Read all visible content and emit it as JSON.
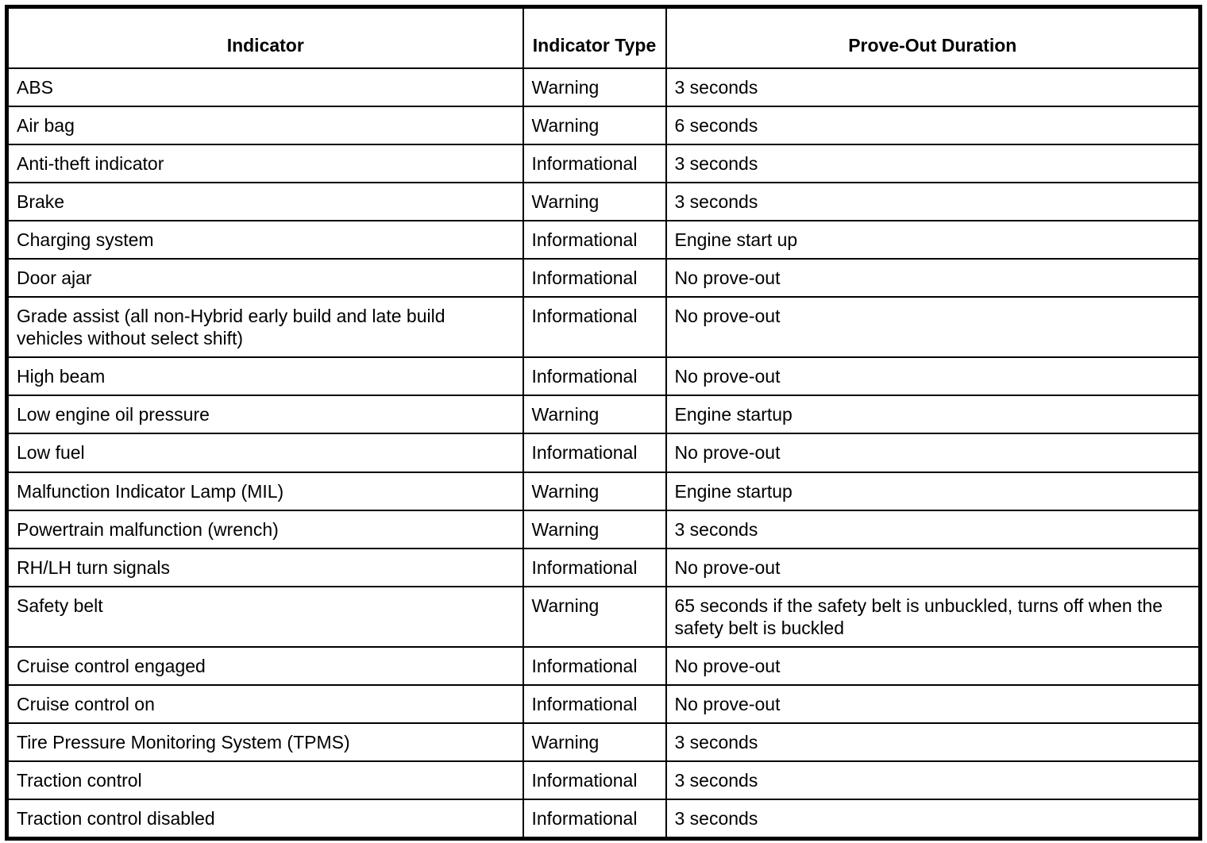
{
  "table": {
    "headers": [
      "Indicator",
      "Indicator Type",
      "Prove-Out Duration"
    ],
    "rows": [
      {
        "indicator": "ABS",
        "type": "Warning",
        "duration": "3 seconds",
        "lines": 1
      },
      {
        "indicator": "Air bag",
        "type": "Warning",
        "duration": "6 seconds",
        "lines": 1
      },
      {
        "indicator": "Anti-theft indicator",
        "type": "Informational",
        "duration": "3 seconds",
        "lines": 1
      },
      {
        "indicator": "Brake",
        "type": "Warning",
        "duration": "3 seconds",
        "lines": 1
      },
      {
        "indicator": "Charging system",
        "type": "Informational",
        "duration": "Engine start up",
        "lines": 1
      },
      {
        "indicator": "Door ajar",
        "type": "Informational",
        "duration": "No prove-out",
        "lines": 1
      },
      {
        "indicator": "Grade assist (all non-Hybrid early build and late build vehicles without select shift)",
        "type": "Informational",
        "duration": "No prove-out",
        "lines": 2
      },
      {
        "indicator": "High beam",
        "type": "Informational",
        "duration": "No prove-out",
        "lines": 1
      },
      {
        "indicator": "Low engine oil pressure",
        "type": "Warning",
        "duration": "Engine startup",
        "lines": 1
      },
      {
        "indicator": "Low fuel",
        "type": "Informational",
        "duration": "No prove-out",
        "lines": 1
      },
      {
        "indicator": "Malfunction Indicator Lamp (MIL)",
        "type": "Warning",
        "duration": "Engine startup",
        "lines": 1
      },
      {
        "indicator": "Powertrain malfunction (wrench)",
        "type": "Warning",
        "duration": "3 seconds",
        "lines": 1
      },
      {
        "indicator": "RH/LH turn signals",
        "type": "Informational",
        "duration": "No prove-out",
        "lines": 1
      },
      {
        "indicator": "Safety belt",
        "type": "Warning",
        "duration": "65 seconds if the safety belt is unbuckled, turns off when the safety belt is buckled",
        "lines": 2
      },
      {
        "indicator": "Cruise control engaged",
        "type": "Informational",
        "duration": "No prove-out",
        "lines": 1
      },
      {
        "indicator": "Cruise control on",
        "type": "Informational",
        "duration": "No prove-out",
        "lines": 1
      },
      {
        "indicator": "Tire Pressure Monitoring System (TPMS)",
        "type": "Warning",
        "duration": "3 seconds",
        "lines": 1
      },
      {
        "indicator": "Traction control",
        "type": "Informational",
        "duration": "3 seconds",
        "lines": 1
      },
      {
        "indicator": "Traction control disabled",
        "type": "Informational",
        "duration": "3 seconds",
        "lines": 1
      }
    ]
  }
}
